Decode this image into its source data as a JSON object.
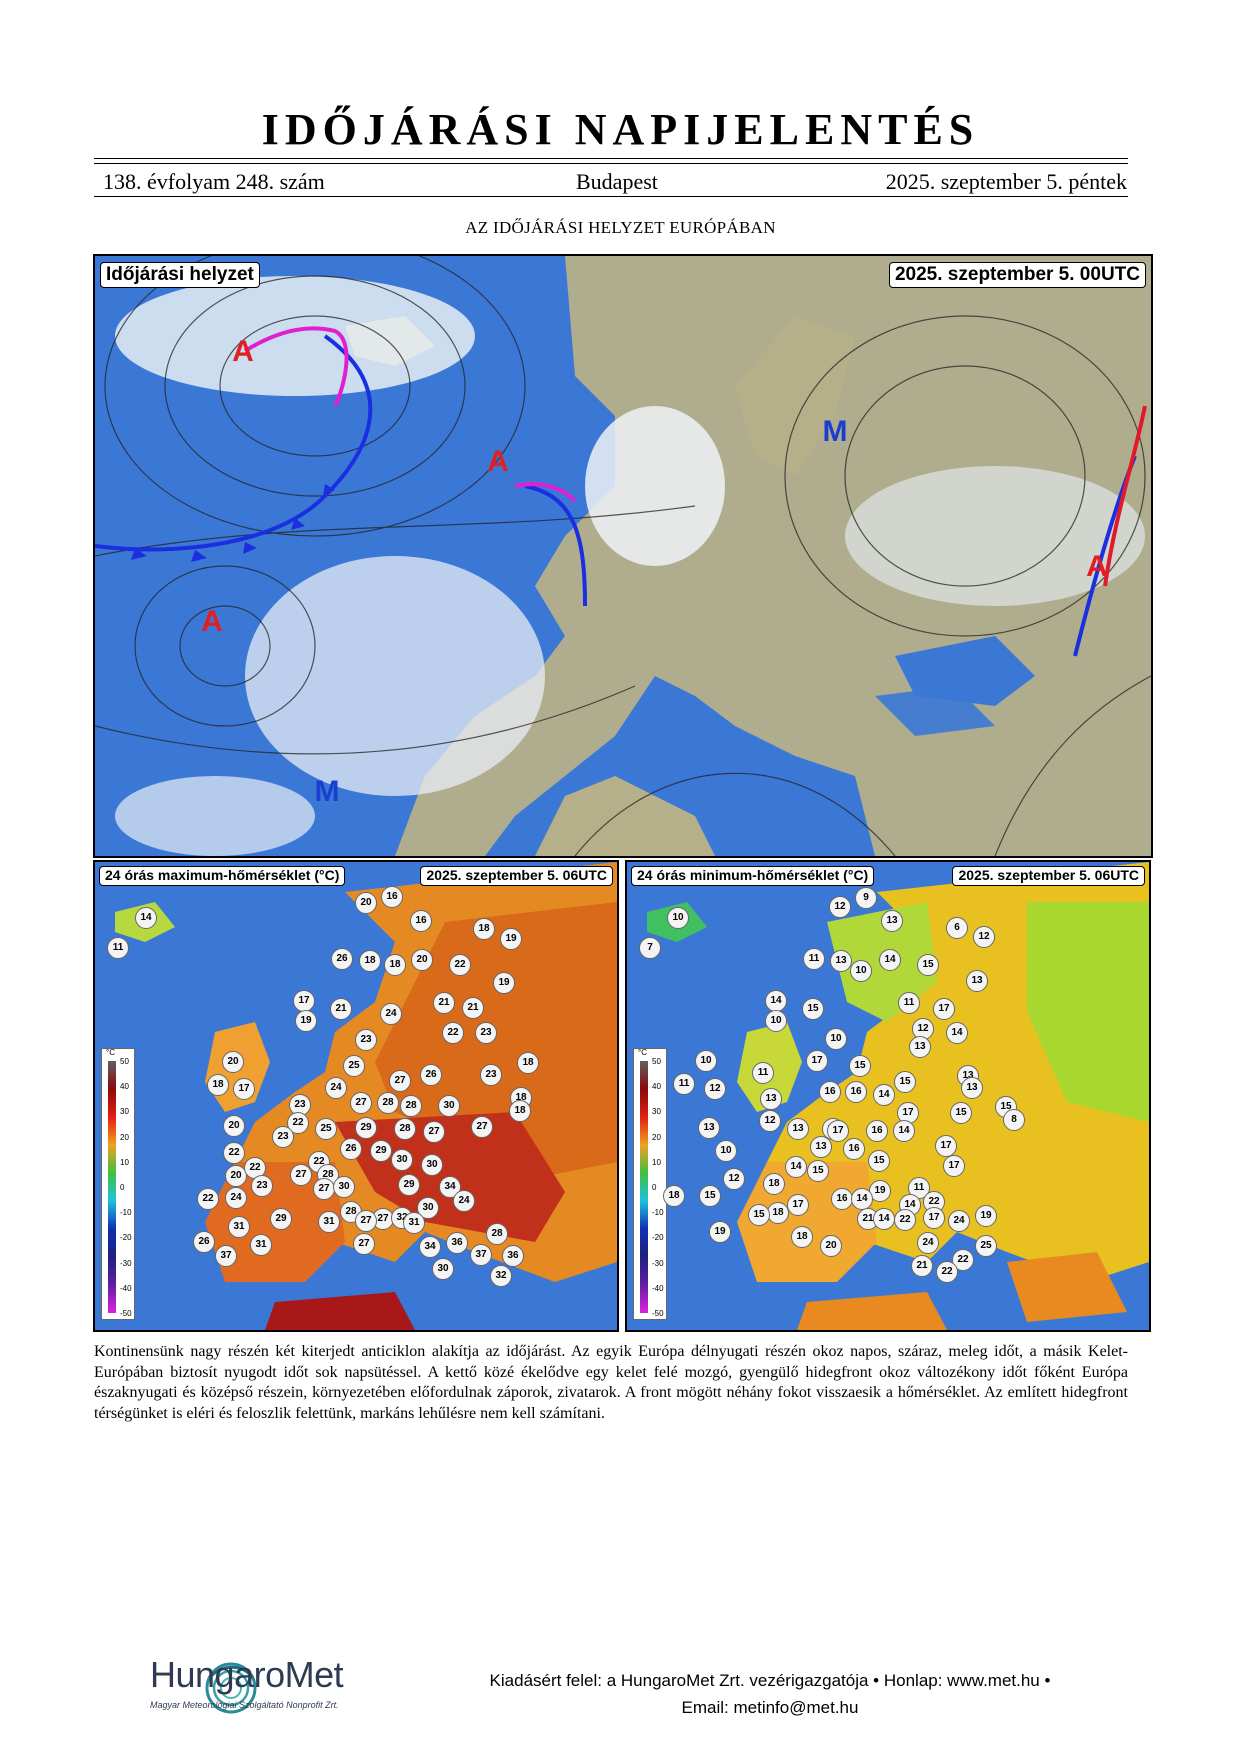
{
  "header": {
    "title": "IDŐJÁRÁSI NAPIJELENTÉS",
    "volume": "138. évfolyam 248. szám",
    "city": "Budapest",
    "date": "2025. szeptember 5. péntek"
  },
  "section_title": "AZ IDŐJÁRÁSI HELYZET EURÓPÁBAN",
  "synoptic_map": {
    "label": "Időjárási helyzet",
    "time": "2025. szeptember 5. 00UTC",
    "pressure_centers": [
      {
        "type": "A",
        "color": "#e02020"
      },
      {
        "type": "A",
        "color": "#e02020"
      },
      {
        "type": "A",
        "color": "#e02020"
      },
      {
        "type": "A",
        "color": "#e02020"
      },
      {
        "type": "M",
        "color": "#1a3fd0"
      },
      {
        "type": "M",
        "color": "#1a3fd0"
      }
    ]
  },
  "max_map": {
    "label": "24 órás maximum-hőmérséklet (°C)",
    "time": "2025. szeptember 5. 06UTC",
    "unit": "°C",
    "scale": [
      "50",
      "40",
      "30",
      "20",
      "10",
      "0",
      "-10",
      "-20",
      "-30",
      "-40",
      "-50"
    ],
    "values": [
      "14",
      "11",
      "20",
      "16",
      "16",
      "18",
      "19",
      "26",
      "18",
      "18",
      "20",
      "22",
      "19",
      "17",
      "21",
      "19",
      "24",
      "21",
      "21",
      "22",
      "23",
      "23",
      "25",
      "18",
      "20",
      "18",
      "17",
      "27",
      "26",
      "23",
      "18",
      "24",
      "27",
      "28",
      "28",
      "30",
      "18",
      "20",
      "23",
      "22",
      "25",
      "29",
      "28",
      "27",
      "27",
      "22",
      "20",
      "23",
      "26",
      "29",
      "30",
      "22",
      "22",
      "27",
      "28",
      "30",
      "27",
      "23",
      "30",
      "29",
      "34",
      "24",
      "22",
      "24",
      "31",
      "28",
      "27",
      "32",
      "30",
      "29",
      "31",
      "27",
      "31",
      "28",
      "26",
      "31",
      "37",
      "27",
      "34",
      "36",
      "37",
      "36",
      "30",
      "32"
    ]
  },
  "min_map": {
    "label": "24 órás minimum-hőmérséklet (°C)",
    "time": "2025. szeptember 5. 06UTC",
    "unit": "°C",
    "scale": [
      "50",
      "40",
      "30",
      "20",
      "10",
      "0",
      "-10",
      "-20",
      "-30",
      "-40",
      "-50"
    ],
    "values": [
      "12",
      "9",
      "10",
      "7",
      "13",
      "6",
      "12",
      "11",
      "13",
      "10",
      "14",
      "15",
      "13",
      "14",
      "15",
      "10",
      "11",
      "17",
      "15",
      "10",
      "12",
      "14",
      "17",
      "15",
      "13",
      "10",
      "11",
      "12",
      "13",
      "15",
      "15",
      "11",
      "13",
      "16",
      "16",
      "14",
      "17",
      "13",
      "8",
      "12",
      "13",
      "13",
      "17",
      "16",
      "14",
      "13",
      "10",
      "13",
      "16",
      "15",
      "17",
      "14",
      "15",
      "17",
      "12",
      "18",
      "19",
      "11",
      "16",
      "14",
      "17",
      "14",
      "22",
      "18",
      "15",
      "18",
      "21",
      "14",
      "17",
      "15",
      "19",
      "22",
      "24",
      "18",
      "20",
      "24",
      "25",
      "22",
      "21",
      "22",
      "19"
    ]
  },
  "description": "Kontinensünk nagy részén két kiterjedt anticiklon alakítja az időjárást. Az egyik Európa délnyugati részén okoz napos, száraz, meleg időt, a másik Kelet-Európában biztosít nyugodt időt sok napsütéssel. A kettő közé ékelődve egy kelet felé mozgó, gyengülő hidegfront okoz változékony időt főként Európa északnyugati és középső részein, környezetében előfordulnak záporok, zivatarok. A front mögött néhány fokot visszaesik a hőmérséklet. Az említett hidegfront térségünket is eléri és feloszlik felettünk, markáns lehűlésre nem kell számítani.",
  "footer": {
    "line1": "Kiadásért felel: a HungaroMet Zrt. vezérigazgatója • Honlap: www.met.hu •",
    "line2": "Email: metinfo@met.hu",
    "logo_name": "HungaroMet",
    "logo_sub": "Magyar Meteorológiai Szolgáltató Nonprofit Zrt."
  },
  "colors": {
    "high": "#e02020",
    "low": "#1a3fd0",
    "cold_front": "#1a2fe0",
    "warm_front": "#e01a2a",
    "occlusion": "#e020d0",
    "ocean": "#3b78d6",
    "land": "#b8b28a"
  }
}
